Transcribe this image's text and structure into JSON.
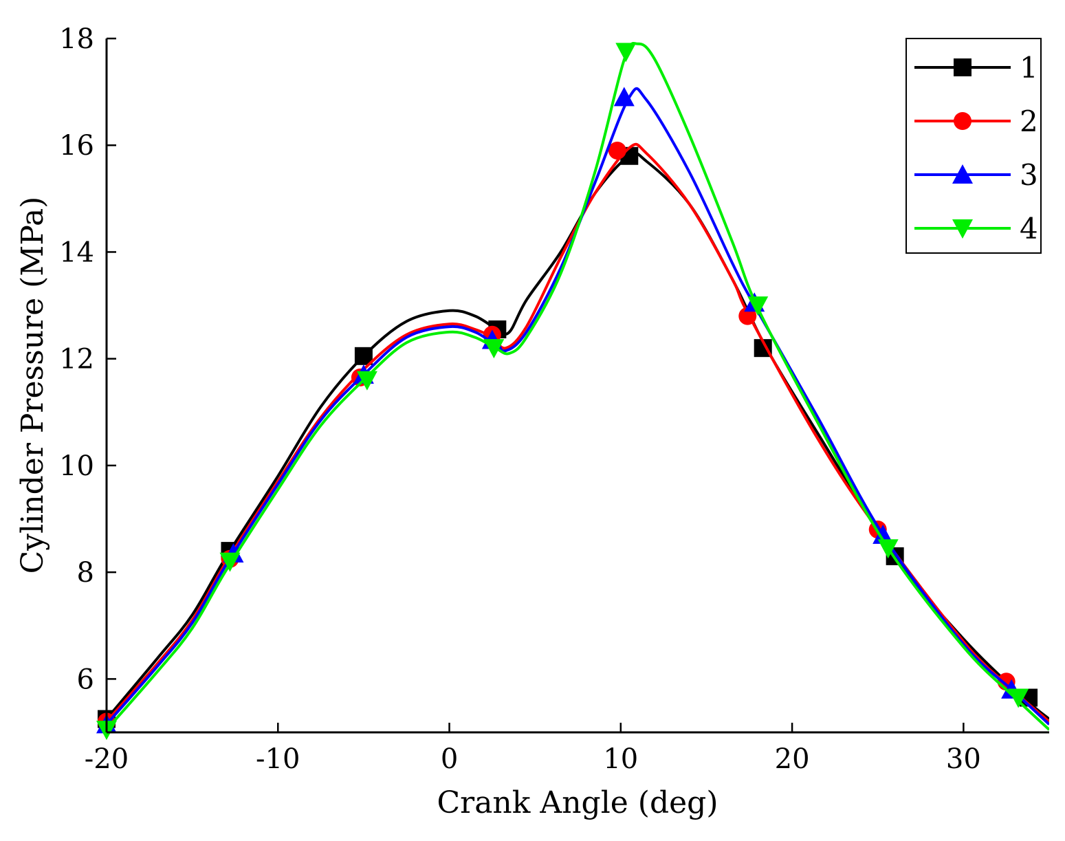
{
  "chart_data": {
    "type": "line",
    "title": "",
    "xlabel": "Crank Angle (deg)",
    "ylabel": "Cylinder Pressure (MPa)",
    "xlim": [
      -20,
      35
    ],
    "ylim": [
      5,
      18
    ],
    "xticks": [
      -20,
      -10,
      0,
      10,
      20,
      30
    ],
    "yticks": [
      6,
      8,
      10,
      12,
      14,
      16,
      18
    ],
    "grid": false,
    "legend_position": "top-right",
    "series": [
      {
        "name": "1",
        "color": "#000000",
        "marker": "square",
        "points": [
          [
            -20,
            5.25
          ],
          [
            -17,
            6.4
          ],
          [
            -15,
            7.2
          ],
          [
            -13,
            8.3
          ],
          [
            -10,
            9.8
          ],
          [
            -7.5,
            11.1
          ],
          [
            -5,
            12.05
          ],
          [
            -2.5,
            12.7
          ],
          [
            0,
            12.9
          ],
          [
            1.5,
            12.8
          ],
          [
            2.8,
            12.55
          ],
          [
            3.5,
            12.5
          ],
          [
            4.5,
            13.1
          ],
          [
            6.5,
            14.0
          ],
          [
            8.5,
            15.1
          ],
          [
            10.5,
            15.8
          ],
          [
            11.5,
            15.7
          ],
          [
            14,
            14.9
          ],
          [
            16.5,
            13.5
          ],
          [
            18.5,
            12.2
          ],
          [
            21.5,
            10.6
          ],
          [
            26,
            8.3
          ],
          [
            30,
            6.75
          ],
          [
            33.5,
            5.65
          ],
          [
            35,
            5.25
          ]
        ],
        "markers": [
          [
            -20,
            5.25
          ],
          [
            -12.8,
            8.4
          ],
          [
            -5,
            12.05
          ],
          [
            2.8,
            12.55
          ],
          [
            10.5,
            15.8
          ],
          [
            18.3,
            12.2
          ],
          [
            26,
            8.3
          ],
          [
            33.8,
            5.65
          ]
        ]
      },
      {
        "name": "2",
        "color": "#ff0000",
        "marker": "circle",
        "points": [
          [
            -20,
            5.2
          ],
          [
            -17,
            6.3
          ],
          [
            -15,
            7.1
          ],
          [
            -13,
            8.2
          ],
          [
            -10,
            9.7
          ],
          [
            -7.5,
            10.9
          ],
          [
            -5,
            11.8
          ],
          [
            -2.5,
            12.45
          ],
          [
            0,
            12.65
          ],
          [
            1.5,
            12.55
          ],
          [
            2.5,
            12.4
          ],
          [
            3.3,
            12.2
          ],
          [
            4.5,
            12.6
          ],
          [
            6.5,
            13.9
          ],
          [
            8.5,
            15.1
          ],
          [
            10.5,
            15.95
          ],
          [
            11.5,
            15.85
          ],
          [
            14,
            14.9
          ],
          [
            16.5,
            13.5
          ],
          [
            17.5,
            12.8
          ],
          [
            21.5,
            10.5
          ],
          [
            25,
            8.8
          ],
          [
            30,
            6.7
          ],
          [
            32.5,
            5.9
          ],
          [
            35,
            5.2
          ]
        ],
        "markers": [
          [
            -20,
            5.2
          ],
          [
            -12.8,
            8.25
          ],
          [
            -5.2,
            11.65
          ],
          [
            2.5,
            12.45
          ],
          [
            9.8,
            15.9
          ],
          [
            17.4,
            12.8
          ],
          [
            25,
            8.8
          ],
          [
            32.5,
            5.95
          ]
        ]
      },
      {
        "name": "3",
        "color": "#0000ff",
        "marker": "triangle-up",
        "points": [
          [
            -20,
            5.15
          ],
          [
            -17,
            6.25
          ],
          [
            -15,
            7.05
          ],
          [
            -13,
            8.15
          ],
          [
            -10,
            9.65
          ],
          [
            -7.5,
            10.85
          ],
          [
            -5,
            11.7
          ],
          [
            -2.5,
            12.4
          ],
          [
            0,
            12.6
          ],
          [
            1.5,
            12.5
          ],
          [
            2.5,
            12.3
          ],
          [
            3.3,
            12.15
          ],
          [
            4.5,
            12.5
          ],
          [
            6.5,
            13.7
          ],
          [
            8.5,
            15.3
          ],
          [
            10.5,
            16.9
          ],
          [
            11.5,
            16.85
          ],
          [
            14,
            15.5
          ],
          [
            16.5,
            13.8
          ],
          [
            17.8,
            13.0
          ],
          [
            21.5,
            10.9
          ],
          [
            25.3,
            8.7
          ],
          [
            30,
            6.65
          ],
          [
            33,
            5.75
          ],
          [
            35,
            5.15
          ]
        ],
        "markers": [
          [
            -20,
            5.15
          ],
          [
            -12.6,
            8.35
          ],
          [
            -5,
            11.7
          ],
          [
            2.5,
            12.35
          ],
          [
            10.2,
            16.9
          ],
          [
            17.8,
            13.05
          ],
          [
            25.3,
            8.7
          ],
          [
            32.8,
            5.8
          ]
        ]
      },
      {
        "name": "4",
        "color": "#00ee00",
        "marker": "triangle-down",
        "points": [
          [
            -20,
            5.05
          ],
          [
            -17,
            6.15
          ],
          [
            -15,
            6.95
          ],
          [
            -13,
            8.05
          ],
          [
            -10,
            9.55
          ],
          [
            -7.5,
            10.75
          ],
          [
            -5,
            11.6
          ],
          [
            -2.5,
            12.3
          ],
          [
            0,
            12.5
          ],
          [
            1.5,
            12.4
          ],
          [
            2.7,
            12.2
          ],
          [
            3.5,
            12.1
          ],
          [
            4.5,
            12.4
          ],
          [
            6.5,
            13.6
          ],
          [
            8.5,
            15.5
          ],
          [
            10.2,
            17.6
          ],
          [
            11,
            17.9
          ],
          [
            12,
            17.6
          ],
          [
            14,
            16.2
          ],
          [
            16.5,
            14.2
          ],
          [
            18,
            12.95
          ],
          [
            21.5,
            10.8
          ],
          [
            25.5,
            8.5
          ],
          [
            30,
            6.6
          ],
          [
            33,
            5.65
          ],
          [
            35,
            5.05
          ]
        ],
        "markers": [
          [
            -20,
            5.05
          ],
          [
            -12.8,
            8.2
          ],
          [
            -4.8,
            11.6
          ],
          [
            2.6,
            12.2
          ],
          [
            10.3,
            17.75
          ],
          [
            18,
            13.0
          ],
          [
            25.6,
            8.45
          ],
          [
            33.2,
            5.65
          ]
        ]
      }
    ]
  }
}
